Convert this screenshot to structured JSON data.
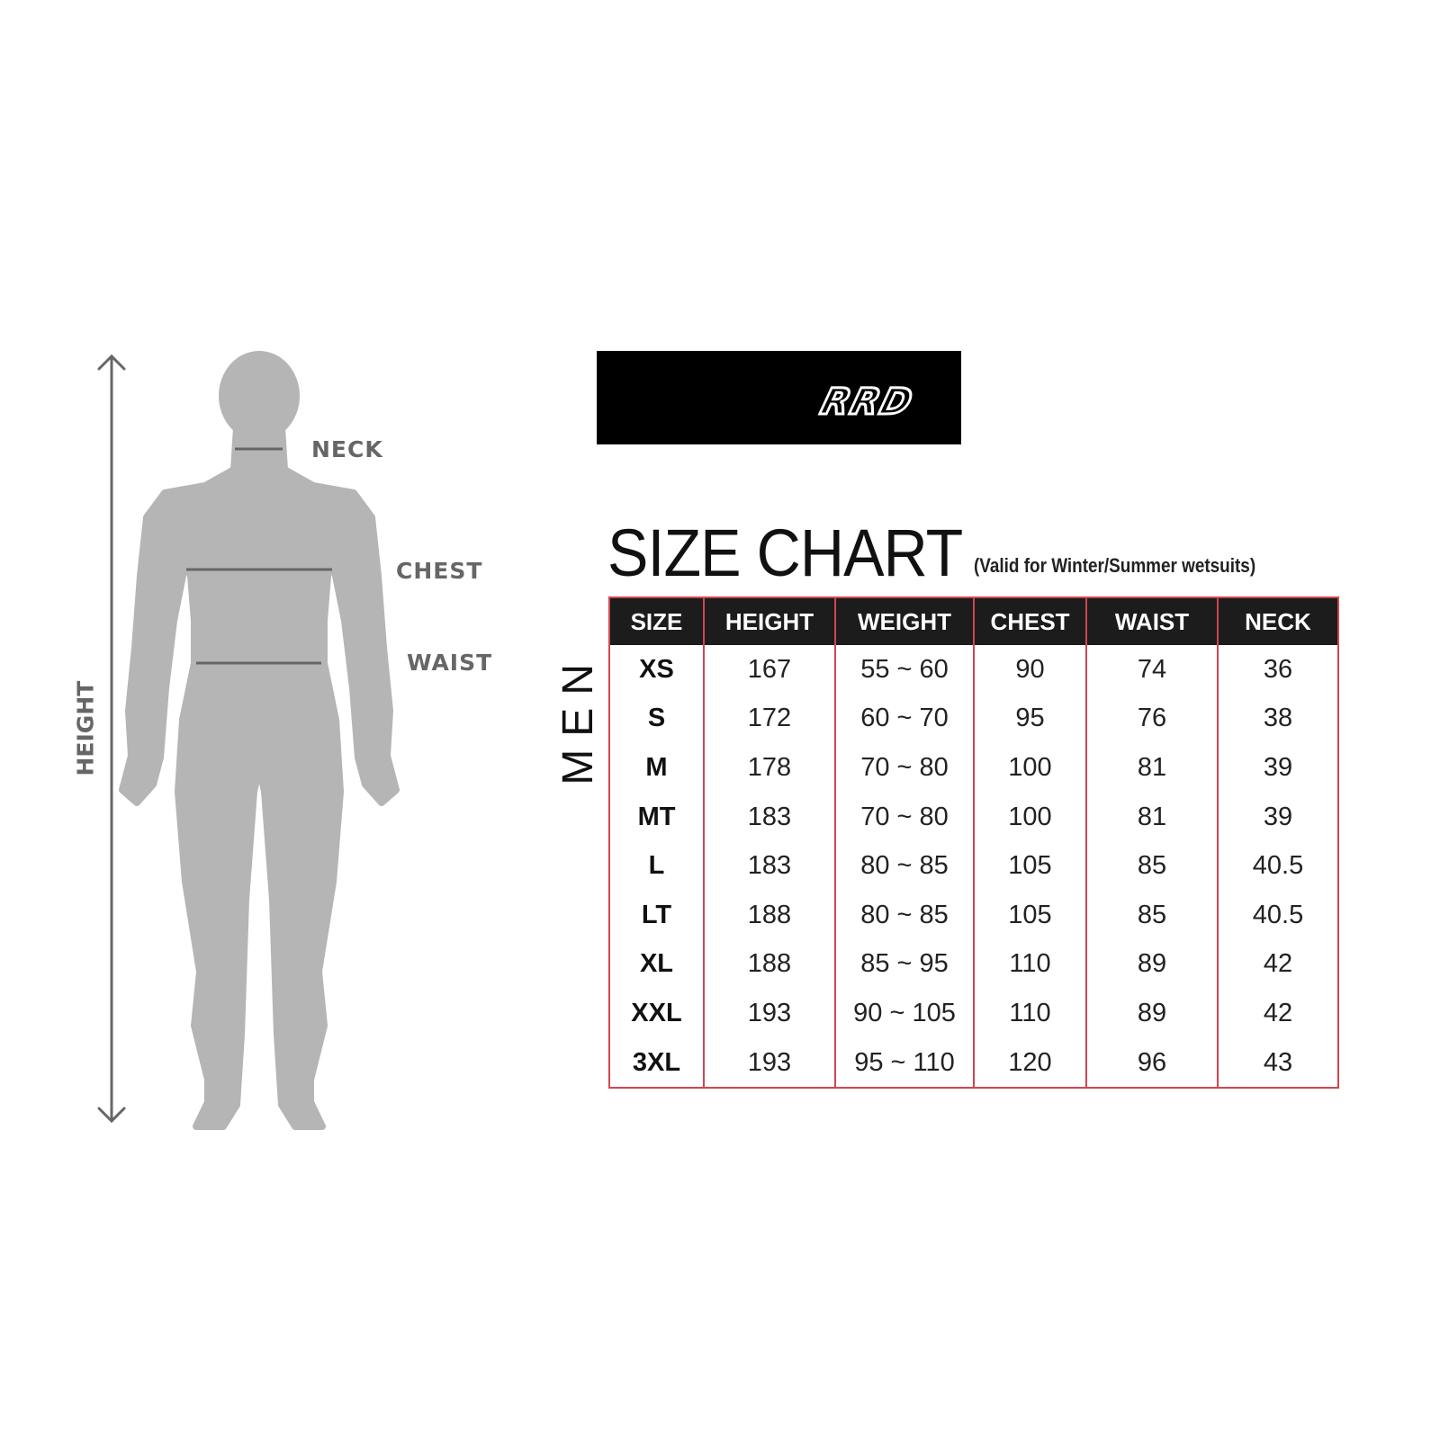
{
  "figure": {
    "labels": {
      "neck": "NECK",
      "chest": "CHEST",
      "waist": "WAIST",
      "height": "HEIGHT"
    },
    "silhouette_color": "#b5b5b5",
    "line_color": "#666666"
  },
  "logo": {
    "text": "RRD",
    "background": "#000000"
  },
  "title": "SIZE CHART",
  "subtitle": "(Valid for Winter/Summer wetsuits)",
  "section_label": "MEN",
  "table": {
    "border_color": "#d0464f",
    "header_background": "#1c1c1c",
    "headers": [
      "SIZE",
      "HEIGHT",
      "WEIGHT",
      "CHEST",
      "WAIST",
      "NECK"
    ],
    "rows": [
      [
        "XS",
        "167",
        "55 ~ 60",
        "90",
        "74",
        "36"
      ],
      [
        "S",
        "172",
        "60 ~ 70",
        "95",
        "76",
        "38"
      ],
      [
        "M",
        "178",
        "70 ~ 80",
        "100",
        "81",
        "39"
      ],
      [
        "MT",
        "183",
        "70 ~ 80",
        "100",
        "81",
        "39"
      ],
      [
        "L",
        "183",
        "80 ~ 85",
        "105",
        "85",
        "40.5"
      ],
      [
        "LT",
        "188",
        "80 ~ 85",
        "105",
        "85",
        "40.5"
      ],
      [
        "XL",
        "188",
        "85 ~ 95",
        "110",
        "89",
        "42"
      ],
      [
        "XXL",
        "193",
        "90 ~ 105",
        "110",
        "89",
        "42"
      ],
      [
        "3XL",
        "193",
        "95 ~ 110",
        "120",
        "96",
        "43"
      ]
    ]
  }
}
